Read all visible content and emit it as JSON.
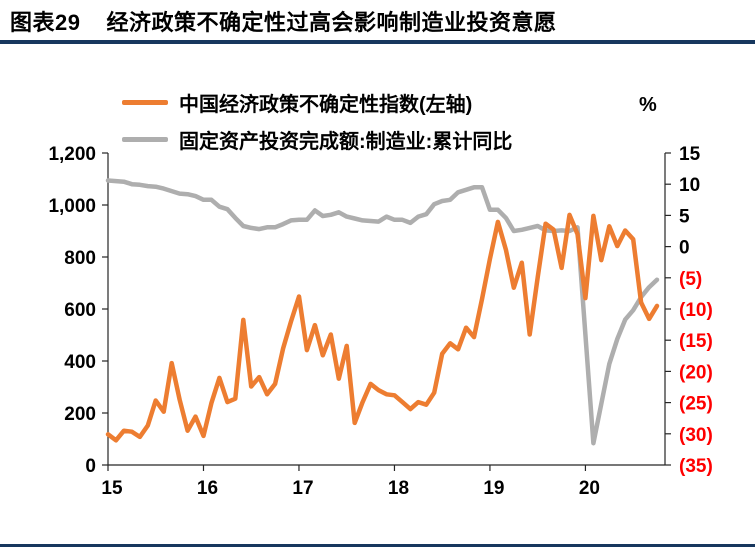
{
  "figure": {
    "label": "图表29",
    "title": "经济政策不确定性过高会影响制造业投资意愿"
  },
  "colors": {
    "rule": "#17375e",
    "epu_orange": "#ED7D31",
    "mfg_gray": "#AEAEAE",
    "negative_tick_red": "#FF0000",
    "axis_black": "#262626"
  },
  "chart_data": {
    "type": "line",
    "title": "经济政策不确定性过高会影响制造业投资意愿",
    "x_axis": {
      "tick_labels": [
        "15",
        "16",
        "17",
        "18",
        "19",
        "20"
      ],
      "tick_month_indices": [
        0,
        12,
        24,
        36,
        48,
        60
      ],
      "months_span": 70,
      "start": "2015-01"
    },
    "left_axis": {
      "min": 0,
      "max": 1200,
      "step": 200,
      "ticks": [
        "1,200",
        "1,000",
        "800",
        "600",
        "400",
        "200",
        "0"
      ]
    },
    "right_axis": {
      "min": -35,
      "max": 15,
      "step": 5,
      "unit": "%",
      "ticks": [
        "15",
        "10",
        "5",
        "0",
        "(5)",
        "(10)",
        "(15)",
        "(20)",
        "(25)",
        "(30)",
        "(35)"
      ]
    },
    "legend_position": "top-left",
    "grid": false,
    "series": [
      {
        "name": "中国经济政策不确定性指数(左轴)",
        "axis": "left",
        "color": "#ED7D31",
        "freq": "monthly",
        "start": "2015-01",
        "values": [
          118,
          95,
          132,
          128,
          108,
          152,
          248,
          205,
          392,
          252,
          132,
          186,
          112,
          238,
          335,
          242,
          255,
          558,
          302,
          338,
          272,
          312,
          448,
          552,
          648,
          442,
          538,
          422,
          502,
          332,
          458,
          162,
          242,
          312,
          288,
          272,
          268,
          242,
          215,
          242,
          232,
          278,
          428,
          468,
          445,
          528,
          492,
          638,
          792,
          935,
          828,
          682,
          778,
          502,
          722,
          928,
          905,
          758,
          962,
          888,
          642,
          958,
          788,
          918,
          842,
          902,
          868,
          625,
          562,
          612
        ]
      },
      {
        "name": "固定资产投资完成额:制造业:累计同比",
        "axis": "right",
        "color": "#AEAEAE",
        "freq": "monthly",
        "start": "2015-01",
        "values": [
          10.6,
          10.5,
          10.4,
          10.0,
          9.9,
          9.7,
          9.6,
          9.3,
          8.9,
          8.5,
          8.4,
          8.1,
          7.5,
          7.5,
          6.4,
          6.0,
          4.6,
          3.3,
          3.0,
          2.8,
          3.1,
          3.1,
          3.6,
          4.2,
          4.3,
          4.3,
          5.8,
          4.9,
          5.1,
          5.5,
          4.8,
          4.5,
          4.2,
          4.1,
          4.0,
          4.8,
          4.3,
          4.3,
          3.8,
          4.8,
          5.2,
          6.8,
          7.3,
          7.5,
          8.7,
          9.1,
          9.5,
          9.5,
          5.9,
          5.9,
          4.6,
          2.5,
          2.7,
          3.0,
          3.3,
          2.6,
          2.5,
          2.6,
          2.5,
          3.1,
          null,
          -31.5,
          -25.2,
          -18.8,
          -14.8,
          -11.7,
          -10.2,
          -8.1,
          -6.5,
          -5.3
        ]
      }
    ]
  }
}
